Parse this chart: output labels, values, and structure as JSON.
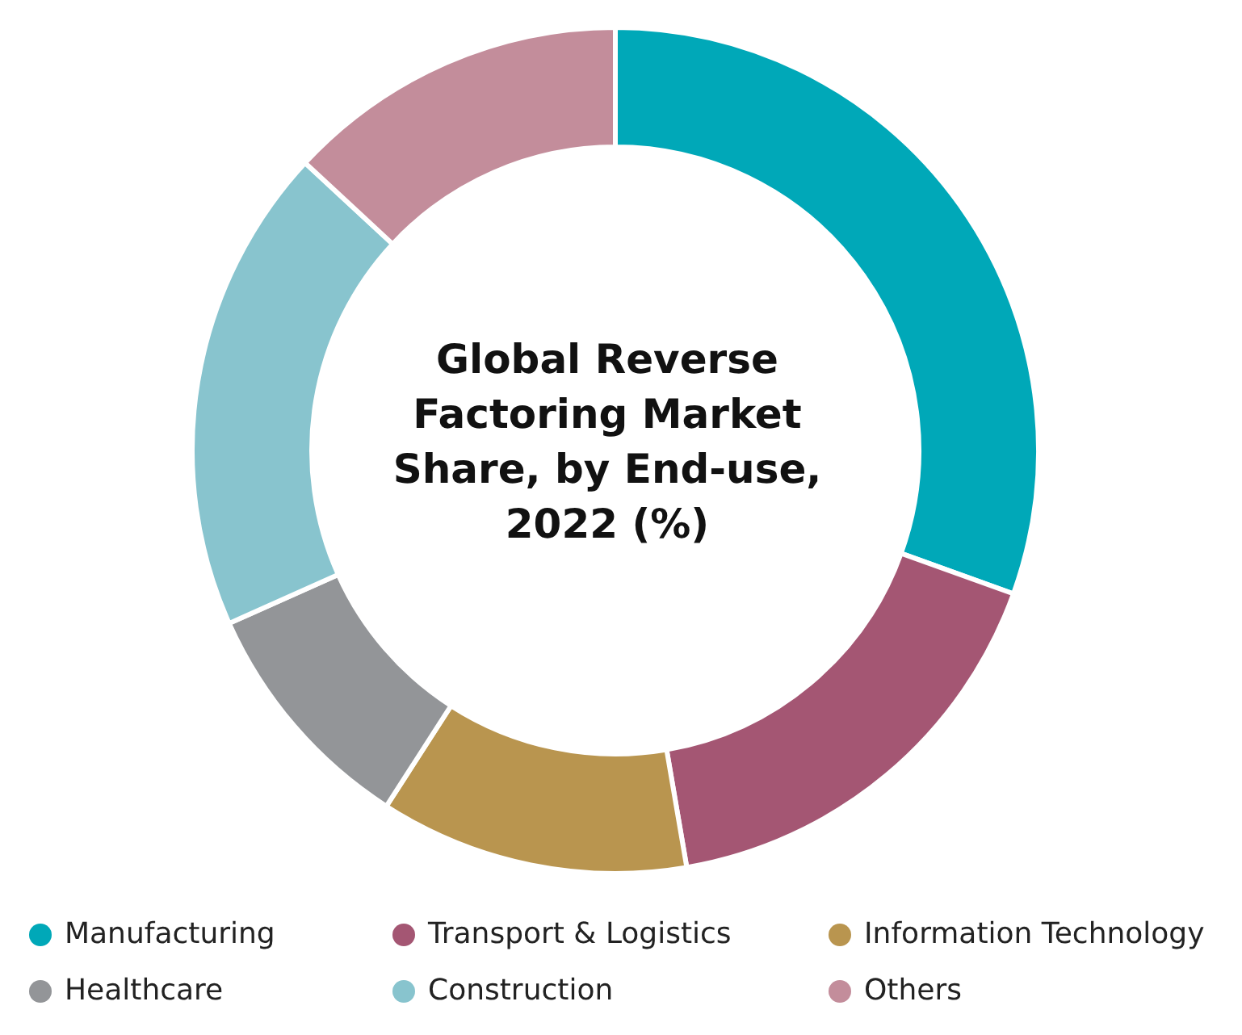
{
  "chart_data": {
    "type": "donut",
    "title": "Global Reverse Factoring Market Share, by End-use, 2022 (%)",
    "categories": [
      "Manufacturing",
      "Transport & Logistics",
      "Information Technology",
      "Healthcare",
      "Construction",
      "Others"
    ],
    "values": [
      30.5,
      16.8,
      11.8,
      9.2,
      18.6,
      13.1
    ],
    "colors": [
      "#00a8b8",
      "#a45673",
      "#b9954f",
      "#939598",
      "#88c4ce",
      "#c38d9b"
    ],
    "legend": "bottom"
  }
}
